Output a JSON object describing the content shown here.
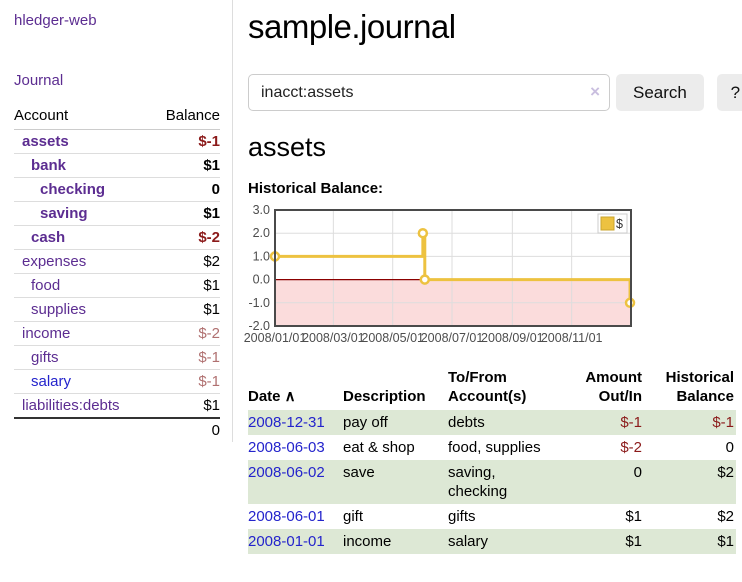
{
  "palette": {
    "link_purple": "#5c2d91",
    "link_blue": "#2424cc",
    "negative": "#8b1a1a",
    "negative_muted": "#b07070",
    "row_highlight_green": "#dde8d5",
    "chart_line": "#edc240",
    "chart_negative_fill": "#fbdcdc",
    "chart_zero_line": "#8b0000",
    "chart_border": "#4a4a4a",
    "grid_line": "#dddddd"
  },
  "sidebar": {
    "app_title": "hledger-web",
    "journal_link": "Journal",
    "accounts": {
      "account_header": "Account",
      "balance_header": "Balance",
      "rows": [
        {
          "name": "assets",
          "depth": 0,
          "bold": true,
          "link_color": "purple",
          "balance": "$-1",
          "balance_tone": "negative"
        },
        {
          "name": "bank",
          "depth": 1,
          "bold": true,
          "link_color": "purple",
          "balance": "$1",
          "balance_tone": "normal"
        },
        {
          "name": "checking",
          "depth": 2,
          "bold": true,
          "link_color": "purple",
          "balance": "0",
          "balance_tone": "normal"
        },
        {
          "name": "saving",
          "depth": 2,
          "bold": true,
          "link_color": "purple",
          "balance": "$1",
          "balance_tone": "normal"
        },
        {
          "name": "cash",
          "depth": 1,
          "bold": true,
          "link_color": "purple",
          "balance": "$-2",
          "balance_tone": "negative"
        },
        {
          "name": "expenses",
          "depth": 0,
          "bold": false,
          "link_color": "purple",
          "balance": "$2",
          "balance_tone": "normal"
        },
        {
          "name": "food",
          "depth": 1,
          "bold": false,
          "link_color": "purple",
          "balance": "$1",
          "balance_tone": "normal"
        },
        {
          "name": "supplies",
          "depth": 1,
          "bold": false,
          "link_color": "purple",
          "balance": "$1",
          "balance_tone": "normal"
        },
        {
          "name": "income",
          "depth": 0,
          "bold": false,
          "link_color": "purple",
          "balance": "$-2",
          "balance_tone": "negative-muted"
        },
        {
          "name": "gifts",
          "depth": 1,
          "bold": false,
          "link_color": "purple",
          "balance": "$-1",
          "balance_tone": "negative-muted"
        },
        {
          "name": "salary",
          "depth": 1,
          "bold": false,
          "link_color": "blue",
          "balance": "$-1",
          "balance_tone": "negative-muted"
        },
        {
          "name": "liabilities:debts",
          "depth": 0,
          "bold": false,
          "link_color": "purple",
          "balance": "$1",
          "balance_tone": "normal"
        }
      ],
      "total": "0"
    }
  },
  "main": {
    "title": "sample.journal",
    "search": {
      "value": "inacct:assets",
      "clear_icon": "×",
      "button_label": "Search",
      "help_label": "?"
    },
    "account_heading": "assets",
    "chart_section_label": "Historical Balance:"
  },
  "chart_data": {
    "type": "line",
    "step": true,
    "title": "Historical Balance",
    "x_range": [
      "2008-01-01",
      "2009-01-01"
    ],
    "ylim": [
      -2,
      3
    ],
    "y_ticks": [
      "3.0",
      "2.0",
      "1.0",
      "0.0",
      "-1.0",
      "-2.0"
    ],
    "x_ticks": [
      "2008/01/01",
      "2008/03/01",
      "2008/05/01",
      "2008/07/01",
      "2008/09/01",
      "2008/11/01"
    ],
    "grid": true,
    "legend": {
      "label": "$",
      "position": "top-right"
    },
    "series": [
      {
        "name": "$",
        "color": "#edc240",
        "points": [
          [
            "2008-01-01",
            1
          ],
          [
            "2008-06-01",
            2
          ],
          [
            "2008-06-03",
            0
          ],
          [
            "2008-12-31",
            -1
          ]
        ]
      }
    ],
    "negative_region": {
      "from": -2,
      "to": 0,
      "color": "#fbdcdc"
    },
    "zero_line_color": "#8b0000"
  },
  "transactions": {
    "headers": [
      {
        "label": "Date",
        "sort_icon": "∧",
        "align": "left"
      },
      {
        "label": "Description",
        "align": "left"
      },
      {
        "label": "To/From Account(s)",
        "align": "left"
      },
      {
        "label": "Amount Out/In",
        "align": "right"
      },
      {
        "label": "Historical Balance",
        "align": "right"
      }
    ],
    "rows": [
      {
        "date": "2008-12-31",
        "description": "pay off",
        "accounts": [
          "debts"
        ],
        "amount": "$-1",
        "amount_negative": true,
        "balance": "$-1",
        "balance_negative": true,
        "highlighted": true
      },
      {
        "date": "2008-06-03",
        "description": "eat & shop",
        "accounts": [
          "food, supplies"
        ],
        "amount": "$-2",
        "amount_negative": true,
        "balance": "0",
        "balance_negative": false,
        "highlighted": false
      },
      {
        "date": "2008-06-02",
        "description": "save",
        "accounts": [
          "saving,",
          "checking"
        ],
        "amount": "0",
        "amount_negative": false,
        "balance": "$2",
        "balance_negative": false,
        "highlighted": true
      },
      {
        "date": "2008-06-01",
        "description": "gift",
        "accounts": [
          "gifts"
        ],
        "amount": "$1",
        "amount_negative": false,
        "balance": "$2",
        "balance_negative": false,
        "highlighted": false
      },
      {
        "date": "2008-01-01",
        "description": "income",
        "accounts": [
          "salary"
        ],
        "amount": "$1",
        "amount_negative": false,
        "balance": "$1",
        "balance_negative": false,
        "highlighted": true
      }
    ]
  }
}
